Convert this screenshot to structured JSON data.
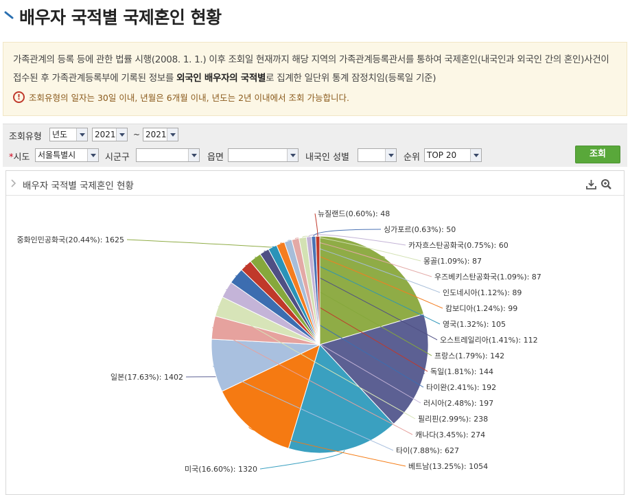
{
  "page": {
    "title": "배우자 국적별 국제혼인 현황"
  },
  "notice": {
    "line_pre": "가족관계의 등록 등에 관한 법률 시행(2008. 1. 1.) 이후 조회일 현재까지 해당 지역의 가족관계등록관서를 통하여 국제혼인(내국인과 외국인 간의 혼인)사건이 접수된 후 가족관계등록부에 기록된 정보를 ",
    "line_bold": "외국인 배우자의 국적별",
    "line_post": "로 집계한 일단위 통계 잠정치임(등록일 기준)",
    "warning": "조회유형의 일자는 30일 이내, 년월은 6개월 이내, 년도는 2년 이내에서 조회 가능합니다."
  },
  "filters": {
    "query_type_label": "조회유형",
    "query_type_value": "년도",
    "year_from": "2021",
    "range_sep": "~",
    "year_to": "2021",
    "sido_label": "시도",
    "sido_required_mark": "*",
    "sido_value": "서울특별시",
    "sigungu_label": "시군구",
    "sigungu_value": "",
    "eupmyeon_label": "읍면",
    "eupmyeon_value": "",
    "gender_label": "내국인 성별",
    "gender_value": "",
    "rank_label": "순위",
    "rank_value": "TOP 20",
    "search_button": "조회"
  },
  "chart_panel": {
    "title": "배우자 국적별 국제혼인 현황",
    "download_icon": "download-icon",
    "zoom_icon": "zoom-icon"
  },
  "chart_data": {
    "type": "pie",
    "title": "",
    "slices": [
      {
        "name": "중화인민공화국",
        "percent": "20.44%",
        "value": 1625,
        "color": "#8fac46"
      },
      {
        "name": "일본",
        "percent": "17.63%",
        "value": 1402,
        "color": "#5c6093"
      },
      {
        "name": "미국",
        "percent": "16.60%",
        "value": 1320,
        "color": "#3aa0c0"
      },
      {
        "name": "베트남",
        "percent": "13.25%",
        "value": 1054,
        "color": "#f57a12"
      },
      {
        "name": "타이",
        "percent": "7.88%",
        "value": 627,
        "color": "#a9c0df"
      },
      {
        "name": "캐나다",
        "percent": "3.45%",
        "value": 274,
        "color": "#e6a29e"
      },
      {
        "name": "필리핀",
        "percent": "2.99%",
        "value": 238,
        "color": "#d7e4b8"
      },
      {
        "name": "러시아",
        "percent": "2.48%",
        "value": 197,
        "color": "#c4b4d8"
      },
      {
        "name": "타이완",
        "percent": "2.41%",
        "value": 192,
        "color": "#3c6db0"
      },
      {
        "name": "독일",
        "percent": "1.81%",
        "value": 144,
        "color": "#c0392b"
      },
      {
        "name": "프랑스",
        "percent": "1.79%",
        "value": 142,
        "color": "#86a83c"
      },
      {
        "name": "오스트레일리아",
        "percent": "1.41%",
        "value": 112,
        "color": "#4f4f84"
      },
      {
        "name": "영국",
        "percent": "1.32%",
        "value": 105,
        "color": "#2a93b8"
      },
      {
        "name": "캄보디아",
        "percent": "1.24%",
        "value": 99,
        "color": "#f47d20"
      },
      {
        "name": "인도네시아",
        "percent": "1.12%",
        "value": 89,
        "color": "#a6bdd9"
      },
      {
        "name": "우즈베키스탄공화국",
        "percent": "1.09%",
        "value": 87,
        "color": "#e3a9a6"
      },
      {
        "name": "몽골",
        "percent": "1.09%",
        "value": 87,
        "color": "#d3e1b3"
      },
      {
        "name": "카자흐스탄공화국",
        "percent": "0.75%",
        "value": 60,
        "color": "#c3b3d6"
      },
      {
        "name": "싱가포르",
        "percent": "0.63%",
        "value": 50,
        "color": "#4a72b4"
      },
      {
        "name": "뉴질랜드",
        "percent": "0.60%",
        "value": 48,
        "color": "#c0392b"
      }
    ]
  }
}
